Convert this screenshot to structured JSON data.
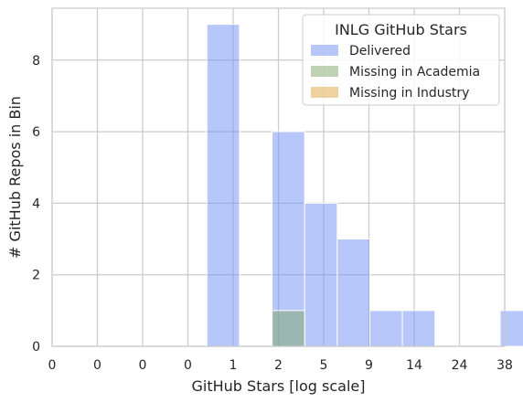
{
  "chart_data": {
    "type": "bar",
    "title": "",
    "xlabel": "GitHub Stars [log scale]",
    "ylabel": "# GitHub Repos in Bin",
    "x_tick_labels": [
      "0",
      "0",
      "0",
      "0",
      "1",
      "2",
      "5",
      "9",
      "14",
      "24",
      "38"
    ],
    "y_ticks": [
      0,
      2,
      4,
      6,
      8
    ],
    "ylim": [
      0,
      9.45
    ],
    "grid": true,
    "legend": {
      "title": "INLG GitHub Stars",
      "placement": "top-right",
      "entries": [
        {
          "label": "Delivered",
          "color": "#6f8ff4"
        },
        {
          "label": "Missing in Academia",
          "color": "#7fa86a"
        },
        {
          "label": "Missing in Industry",
          "color": "#dda33e"
        }
      ]
    },
    "series": [
      {
        "name": "Delivered",
        "color": "#6f8ff4",
        "bins": [
          {
            "bin_index": 2,
            "count": 9
          },
          {
            "bin_index": 4,
            "count": 6
          },
          {
            "bin_index": 5,
            "count": 4
          },
          {
            "bin_index": 6,
            "count": 3
          },
          {
            "bin_index": 7,
            "count": 1
          },
          {
            "bin_index": 8,
            "count": 1
          },
          {
            "bin_index": 11,
            "count": 1
          }
        ]
      },
      {
        "name": "Missing in Academia",
        "color": "#7fa86a",
        "bins": [
          {
            "bin_index": 4,
            "count": 1
          }
        ]
      },
      {
        "name": "Missing in Industry",
        "color": "#dda33e",
        "bins": []
      }
    ]
  }
}
